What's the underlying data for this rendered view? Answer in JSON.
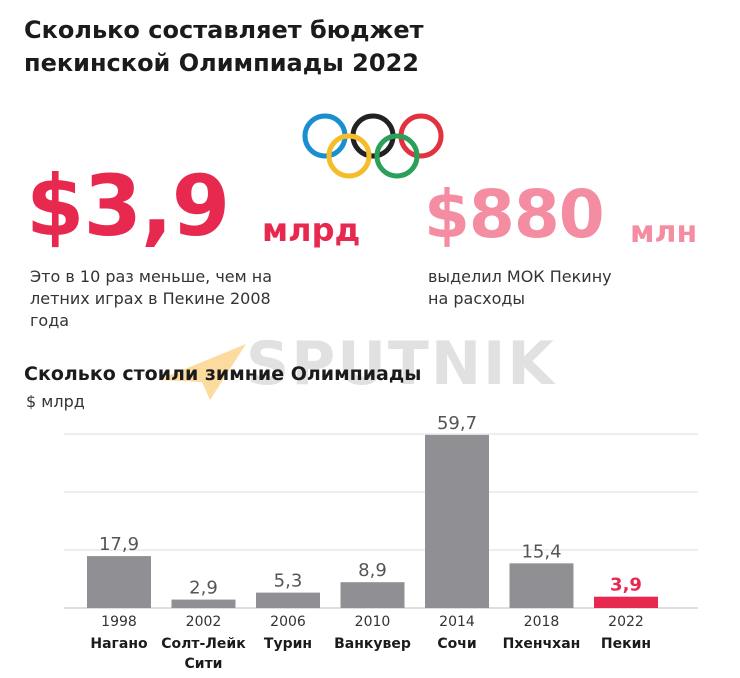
{
  "header": {
    "title": "Сколько составляет бюджет\nпекинской Олимпиады 2022"
  },
  "stats": [
    {
      "value": "$3,9",
      "unit": "млрд",
      "description": "Это в 10 раз меньше, чем на\nлетних играх в Пекине 2008\nгода",
      "color": "#e8294f"
    },
    {
      "value": "$880",
      "unit": "млн",
      "description": "выделил МОК Пекину\nна расходы",
      "color": "#f58da2"
    }
  ],
  "watermark": "SPUTNIK",
  "rings_icon": "olympic-rings-icon",
  "chart_data": {
    "type": "bar",
    "title": "Сколько стоили зимние Олимпиады",
    "ylabel": "$ млрд",
    "categories": [
      "1998",
      "2002",
      "2006",
      "2010",
      "2014",
      "2018",
      "2022"
    ],
    "category_cities": [
      "Нагано",
      "Солт-Лейк Сити",
      "Турин",
      "Ванкувер",
      "Сочи",
      "Пхенчхан",
      "Пекин"
    ],
    "values": [
      17.9,
      2.9,
      5.3,
      8.9,
      59.7,
      15.4,
      3.9
    ],
    "value_labels": [
      "17,9",
      "2,9",
      "5,3",
      "8,9",
      "59,7",
      "15,4",
      "3,9"
    ],
    "ylim": [
      0,
      60
    ],
    "grid": true,
    "colors": {
      "default": "#909094",
      "highlight": "#e8294f"
    },
    "highlight_index": 6
  }
}
